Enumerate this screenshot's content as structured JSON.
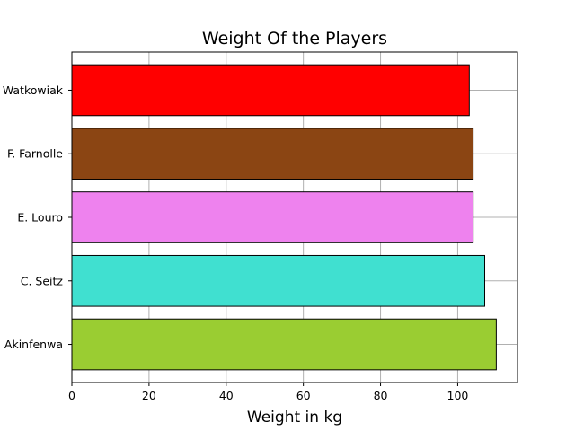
{
  "chart_data": {
    "type": "bar",
    "orientation": "horizontal",
    "title": "Weight Of the Players",
    "xlabel": "Weight in kg",
    "ylabel": "",
    "categories": [
      "K. Akinfenwa",
      "C. Seitz",
      "E. Louro",
      "F. Farnolle",
      "M. Watkowiak"
    ],
    "values": [
      110,
      107,
      104,
      104,
      103
    ],
    "colors": [
      "#9acd32",
      "#40e0d0",
      "#ee82ee",
      "#8b4513",
      "#ff0000"
    ],
    "xlim": [
      0,
      115.5
    ],
    "xticks": [
      0,
      20,
      40,
      60,
      80,
      100
    ],
    "grid": true
  }
}
